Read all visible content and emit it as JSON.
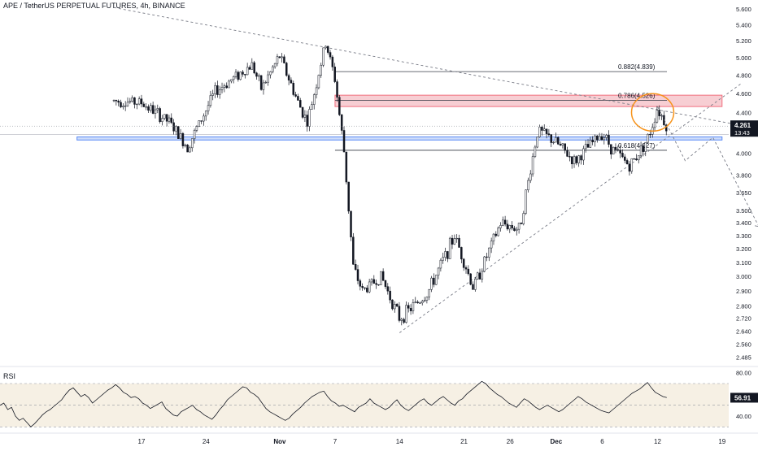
{
  "header": {
    "symbol_line": "APE / TetherUS PERPETUAL FUTURES, 4h, BINANCE"
  },
  "rsi_panel": {
    "title": "RSI"
  },
  "colors": {
    "candle_up": "#ffffff",
    "candle_down": "#131722",
    "candle_outline": "#131722",
    "fib_line": "#363a45",
    "red_zone_fill": "#f7c9cf",
    "red_zone_stroke": "#f06071",
    "blue_zone_fill": "#c8d9fa",
    "blue_zone_stroke": "#4a7ff5",
    "orange_circle": "#f7931a",
    "trendline": "#787b86",
    "rsi_band_fill": "#f6f0e4",
    "rsi_line": "#131722",
    "price_tag_bg": "#131722",
    "price_tag_text": "#ffffff"
  },
  "chart_data": [
    {
      "type": "candlestick",
      "title": "APE / TetherUS PERPETUAL FUTURES, 4h, BINANCE",
      "scale": "log",
      "ylim": [
        2.44,
        5.72
      ],
      "y_ticks": [
        "5.600",
        "5.400",
        "5.200",
        "5.000",
        "4.800",
        "4.600",
        "4.400",
        "4.200",
        "4.000",
        "3.800",
        "3.650",
        "3.500",
        "3.400",
        "3.300",
        "3.200",
        "3.100",
        "3.000",
        "2.900",
        "2.800",
        "2.720",
        "2.640",
        "2.560",
        "2.485"
      ],
      "x_ticks": [
        "17",
        "24",
        "Nov",
        "7",
        "14",
        "21",
        "26",
        "Dec",
        "6",
        "12",
        "19",
        "26"
      ],
      "current_price": "4.261",
      "countdown": "13:43",
      "price_path": [
        {
          "date": "Oct 14",
          "price": 4.52
        },
        {
          "date": "Oct 17",
          "price": 4.5
        },
        {
          "date": "Oct 20",
          "price": 4.3
        },
        {
          "date": "Oct 22",
          "price": 4.06
        },
        {
          "date": "Oct 25",
          "price": 4.62
        },
        {
          "date": "Oct 29",
          "price": 4.92
        },
        {
          "date": "Oct 30",
          "price": 4.65
        },
        {
          "date": "Nov 1",
          "price": 5.02
        },
        {
          "date": "Nov 3",
          "price": 4.5
        },
        {
          "date": "Nov 4",
          "price": 4.3
        },
        {
          "date": "Nov 6",
          "price": 5.18
        },
        {
          "date": "Nov 7",
          "price": 4.75
        },
        {
          "date": "Nov 8",
          "price": 4.0
        },
        {
          "date": "Nov 9",
          "price": 3.05
        },
        {
          "date": "Nov 10",
          "price": 2.9
        },
        {
          "date": "Nov 12",
          "price": 3.0
        },
        {
          "date": "Nov 14",
          "price": 2.72
        },
        {
          "date": "Nov 17",
          "price": 2.88
        },
        {
          "date": "Nov 20",
          "price": 3.3
        },
        {
          "date": "Nov 22",
          "price": 2.92
        },
        {
          "date": "Nov 25",
          "price": 3.4
        },
        {
          "date": "Nov 27",
          "price": 3.35
        },
        {
          "date": "Nov 29",
          "price": 4.22
        },
        {
          "date": "Dec 1",
          "price": 4.1
        },
        {
          "date": "Dec 3",
          "price": 3.92
        },
        {
          "date": "Dec 6",
          "price": 4.2
        },
        {
          "date": "Dec 7",
          "price": 4.05
        },
        {
          "date": "Dec 9",
          "price": 3.88
        },
        {
          "date": "Dec 11",
          "price": 4.15
        },
        {
          "date": "Dec 12",
          "price": 4.45
        },
        {
          "date": "Dec 13",
          "price": 4.261
        }
      ],
      "fib_levels": [
        {
          "label": "0.882(4.839)",
          "price": 4.839
        },
        {
          "label": "0.786(4.526)",
          "price": 4.526
        },
        {
          "label": "0.618(4.027)",
          "price": 4.027
        }
      ],
      "zones": [
        {
          "name": "resistance",
          "low": 4.46,
          "high": 4.58,
          "start": "Nov 7",
          "end": "Dec 19"
        },
        {
          "name": "support",
          "low": 4.125,
          "high": 4.155,
          "start": "Oct 10",
          "end": "Dec 19"
        }
      ],
      "highlight": {
        "shape": "ellipse",
        "date": "Dec 12",
        "price": 4.4
      },
      "trendlines": [
        {
          "style": "dashed",
          "from": {
            "date": "Oct 14",
            "price": 5.62
          },
          "to": {
            "date": "Dec 31",
            "price": 4.1
          }
        },
        {
          "style": "dashed",
          "from": {
            "date": "Nov 14",
            "price": 2.63
          },
          "to": {
            "date": "Dec 21",
            "price": 4.7
          }
        }
      ],
      "projection": [
        {
          "date": "Dec 12",
          "price": 4.46
        },
        {
          "date": "Dec 15",
          "price": 3.93
        },
        {
          "date": "Dec 18",
          "price": 4.15
        },
        {
          "date": "Dec 23",
          "price": 3.37
        }
      ]
    },
    {
      "type": "line",
      "title": "RSI",
      "ylim": [
        25,
        85
      ],
      "y_ticks": [
        "80.00",
        "40.00"
      ],
      "band": [
        30,
        70
      ],
      "current_value": "56.91",
      "values": [
        50,
        52,
        46,
        48,
        40,
        36,
        38,
        34,
        30,
        33,
        37,
        41,
        44,
        46,
        49,
        52,
        55,
        60,
        64,
        66,
        62,
        58,
        60,
        57,
        52,
        55,
        58,
        61,
        64,
        66,
        69,
        66,
        62,
        60,
        57,
        58,
        56,
        52,
        50,
        47,
        49,
        51,
        53,
        47,
        44,
        41,
        40,
        44,
        46,
        48,
        50,
        46,
        44,
        41,
        39,
        37,
        41,
        46,
        50,
        55,
        58,
        61,
        64,
        67,
        66,
        62,
        60,
        57,
        52,
        47,
        44,
        42,
        40,
        38,
        36,
        38,
        42,
        45,
        48,
        52,
        55,
        58,
        60,
        62,
        63,
        58,
        54,
        52,
        49,
        50,
        48,
        46,
        44,
        48,
        50,
        52,
        56,
        52,
        50,
        48,
        46,
        48,
        52,
        55,
        50,
        47,
        45,
        48,
        51,
        54,
        56,
        52,
        50,
        53,
        56,
        58,
        55,
        52,
        50,
        54,
        56,
        60,
        63,
        66,
        69,
        72,
        70,
        66,
        63,
        60,
        58,
        55,
        52,
        50,
        48,
        52,
        56,
        54,
        51,
        48,
        46,
        48,
        50,
        48,
        46,
        44,
        46,
        49,
        52,
        55,
        58,
        56,
        53,
        51,
        49,
        47,
        45,
        44,
        43,
        46,
        49,
        52,
        55,
        58,
        61,
        63,
        65,
        68,
        71,
        66,
        62,
        60,
        58,
        57
      ]
    }
  ]
}
